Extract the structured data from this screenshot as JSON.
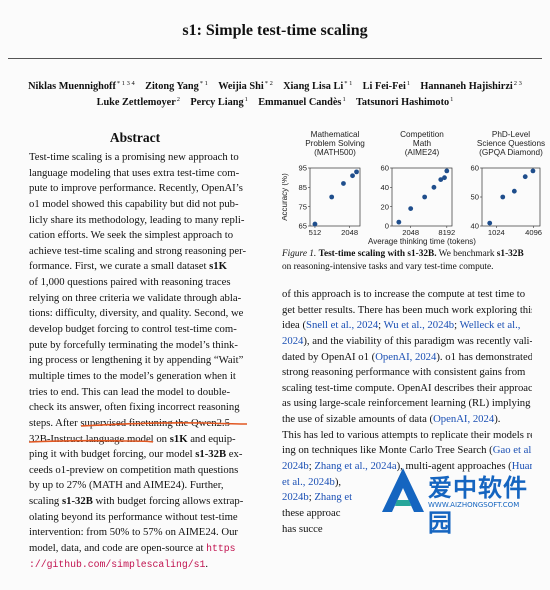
{
  "paper": {
    "title": "s1: Simple test-time scaling",
    "authors_line1": [
      {
        "name": "Niklas Muennighoff",
        "aff": "* 1 3 4"
      },
      {
        "name": "Zitong Yang",
        "aff": "* 1"
      },
      {
        "name": "Weijia Shi",
        "aff": "* 2"
      },
      {
        "name": "Xiang Lisa Li",
        "aff": "* 1"
      },
      {
        "name": "Li Fei-Fei",
        "aff": "1"
      },
      {
        "name": "Hannaneh Hajishirzi",
        "aff": "2 3"
      }
    ],
    "authors_line2": [
      {
        "name": "Luke Zettlemoyer",
        "aff": "2"
      },
      {
        "name": "Percy Liang",
        "aff": "1"
      },
      {
        "name": "Emmanuel Candès",
        "aff": "1"
      },
      {
        "name": "Tatsunori Hashimoto",
        "aff": "1"
      }
    ]
  },
  "abstract": {
    "heading": "Abstract",
    "lines": [
      [
        {
          "t": "Test-time scaling is a promising new approach to"
        }
      ],
      [
        {
          "t": "language modeling that uses extra test-time com-"
        }
      ],
      [
        {
          "t": "pute to improve performance. Recently, OpenAI’s"
        }
      ],
      [
        {
          "t": "o1 model showed this capability but did not pub-"
        }
      ],
      [
        {
          "t": "licly share its methodology, leading to many repli-"
        }
      ],
      [
        {
          "t": "cation efforts. We seek the simplest approach to"
        }
      ],
      [
        {
          "t": "achieve test-time scaling and strong reasoning per-"
        }
      ],
      [
        {
          "t": "formance. First, we curate a small dataset "
        },
        {
          "t": "s1K",
          "s": "b"
        }
      ],
      [
        {
          "t": "of 1,000 questions paired with reasoning traces"
        }
      ],
      [
        {
          "t": "relying on three criteria we validate through abla-"
        }
      ],
      [
        {
          "t": "tions: difficulty, diversity, and quality. Second, we"
        }
      ],
      [
        {
          "t": "develop budget forcing to control test-time com-"
        }
      ],
      [
        {
          "t": "pute by forcefully terminating the model’s think-"
        }
      ],
      [
        {
          "t": "ing process or lengthening it by appending “Wait”"
        }
      ],
      [
        {
          "t": "multiple times to the model’s generation when it"
        }
      ],
      [
        {
          "t": "tries to end. This can lead the model to double-"
        }
      ],
      [
        {
          "t": "check its answer, often fixing incorrect reasoning"
        }
      ],
      [
        {
          "t": "steps. After supervised finetuning the Qwen2.5-"
        }
      ],
      [
        {
          "t": "32B-Instruct language model on "
        },
        {
          "t": "s1K",
          "s": "b"
        },
        {
          "t": " and equip-"
        }
      ],
      [
        {
          "t": "ping it with budget forcing, our model "
        },
        {
          "t": "s1-32B",
          "s": "b"
        },
        {
          "t": " ex-"
        }
      ],
      [
        {
          "t": "ceeds o1-preview on competition math questions"
        }
      ],
      [
        {
          "t": "by up to 27% (MATH and AIME24). Further,"
        }
      ],
      [
        {
          "t": "scaling "
        },
        {
          "t": "s1-32B",
          "s": "b"
        },
        {
          "t": " with budget forcing allows extrap-"
        }
      ],
      [
        {
          "t": "olating beyond its performance without test-time"
        }
      ],
      [
        {
          "t": "intervention: from 50% to 57% on AIME24. Our"
        }
      ],
      [
        {
          "t": "model, data, and code are open-source at "
        },
        {
          "t": "https",
          "s": "mono"
        }
      ],
      [
        {
          "t": "://github.com/simplescaling/s1",
          "s": "mono"
        },
        {
          "t": "."
        }
      ]
    ]
  },
  "figure": {
    "caption_label": "Figure 1.",
    "caption_bold": "Test-time scaling with s1-32B.",
    "caption_rest_1": " We benchmark ",
    "caption_bold2": "s1-32B",
    "caption_rest_2": "on reasoning-intensive tasks and vary test-time compute.",
    "xlabel": "Average thinking time (tokens)",
    "ylabel": "Accuracy (%)",
    "panel_titles": [
      [
        "Mathematical",
        "Problem Solving",
        "(MATH500)"
      ],
      [
        "Competition",
        "Math",
        "(AIME24)"
      ],
      [
        "PhD-Level",
        "Science Questions",
        "(GPQA Diamond)"
      ]
    ]
  },
  "chart_data": [
    {
      "type": "scatter",
      "title": "Mathematical Problem Solving (MATH500)",
      "xlabel": "Average thinking time (tokens)",
      "ylabel": "Accuracy (%)",
      "x_scale": "log",
      "x_ticks": [
        "512",
        "2048"
      ],
      "y_ticks": [
        "65",
        "75",
        "85",
        "95"
      ],
      "ylim": [
        65,
        95
      ],
      "x": [
        512,
        1000,
        1600,
        2300,
        2700
      ],
      "y": [
        66,
        80,
        87,
        91,
        93
      ]
    },
    {
      "type": "scatter",
      "title": "Competition Math (AIME24)",
      "x_scale": "log",
      "x_ticks": [
        "2048",
        "8192"
      ],
      "y_ticks": [
        "0",
        "20",
        "40",
        "60"
      ],
      "ylim": [
        0,
        60
      ],
      "x": [
        1300,
        2048,
        3500,
        5000,
        6500,
        7500,
        8192
      ],
      "y": [
        4,
        18,
        30,
        40,
        48,
        50,
        57
      ]
    },
    {
      "type": "scatter",
      "title": "PhD-Level Science Questions (GPQA Diamond)",
      "x_scale": "log",
      "x_ticks": [
        "1024",
        "4096"
      ],
      "y_ticks": [
        "40",
        "50",
        "60"
      ],
      "ylim": [
        40,
        60
      ],
      "x": [
        800,
        1300,
        2000,
        3000,
        4000
      ],
      "y": [
        41,
        50,
        52,
        57,
        59
      ]
    }
  ],
  "right_column": {
    "lines": [
      [
        {
          "t": "of this approach is to increase the compute at test time to"
        }
      ],
      [
        {
          "t": "get better results. There has been much work exploring this"
        }
      ],
      [
        {
          "t": "idea ("
        },
        {
          "t": "Snell et al., 2024",
          "s": "cite"
        },
        {
          "t": "; "
        },
        {
          "t": "Wu et al., 2024b",
          "s": "cite"
        },
        {
          "t": "; "
        },
        {
          "t": "Welleck et al.,",
          "s": "cite"
        }
      ],
      [
        {
          "t": "2024",
          "s": "cite"
        },
        {
          "t": "), and the viability of this paradigm was recently vali-"
        }
      ],
      [
        {
          "t": "dated by OpenAI o1 ("
        },
        {
          "t": "OpenAI, 2024",
          "s": "cite"
        },
        {
          "t": "). o1 has demonstrated"
        }
      ],
      [
        {
          "t": "strong reasoning performance with consistent gains from"
        }
      ],
      [
        {
          "t": "scaling test-time compute. OpenAI describes their approach"
        }
      ],
      [
        {
          "t": "as using large-scale reinforcement learning (RL) implying"
        }
      ],
      [
        {
          "t": "the use of sizable amounts of data ("
        },
        {
          "t": "OpenAI, 2024",
          "s": "cite"
        },
        {
          "t": ")."
        }
      ],
      [
        {
          "t": "This has led to various attempts to replicate their models rely-"
        }
      ],
      [
        {
          "t": "ing on techniques like Monte Carlo Tree Search ("
        },
        {
          "t": "Gao et al.,",
          "s": "cite"
        }
      ],
      [
        {
          "t": "2024b",
          "s": "cite"
        },
        {
          "t": "; "
        },
        {
          "t": "Zhang et al., 2024a",
          "s": "cite"
        },
        {
          "t": "), multi-agent approaches ("
        },
        {
          "t": "Huang",
          "s": "cite"
        }
      ],
      [
        {
          "t": "et al., 2024b",
          "s": "cite"
        },
        {
          "t": "),"
        }
      ],
      [
        {
          "t": "2024b",
          "s": "cite"
        },
        {
          "t": "; "
        },
        {
          "t": "Zhang et",
          "s": "cite"
        }
      ],
      [
        {
          "t": "these approac"
        }
      ],
      [
        {
          "t": "has succe"
        }
      ]
    ]
  },
  "watermark": {
    "text": "爱中软件园",
    "url": "WWW.AIZHONGSOFT.COM"
  },
  "colors": {
    "citation": "#1a4fb4",
    "mono": "#c1124f",
    "points": "#1f4e8c",
    "annotation": "#e25822",
    "watermark": "#1565c0"
  }
}
